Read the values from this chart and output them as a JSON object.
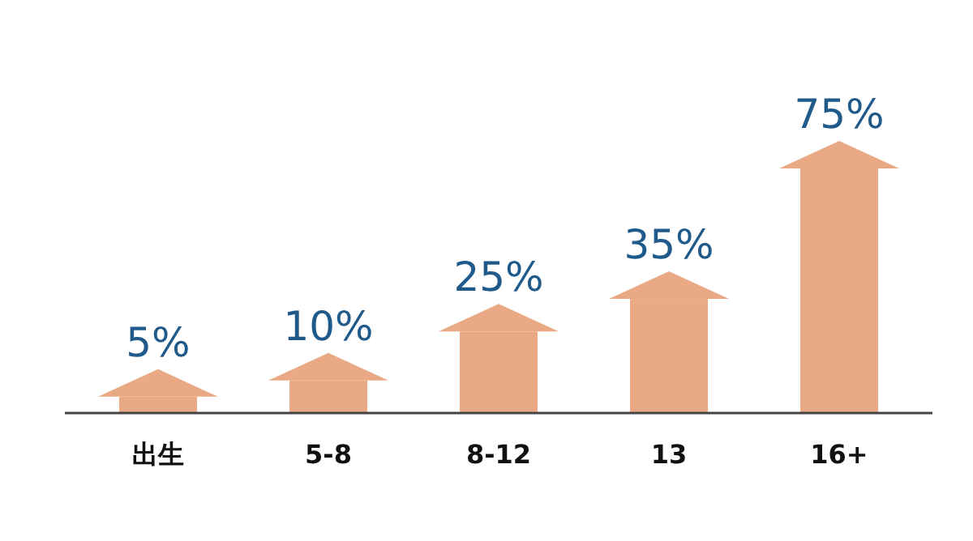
{
  "chart_data": {
    "type": "bar",
    "categories": [
      "出生",
      "5-8",
      "8-12",
      "13",
      "16+"
    ],
    "values": [
      5,
      10,
      25,
      35,
      75
    ],
    "value_labels": [
      "5%",
      "10%",
      "25%",
      "35%",
      "75%"
    ],
    "color": "#e9a984"
  }
}
